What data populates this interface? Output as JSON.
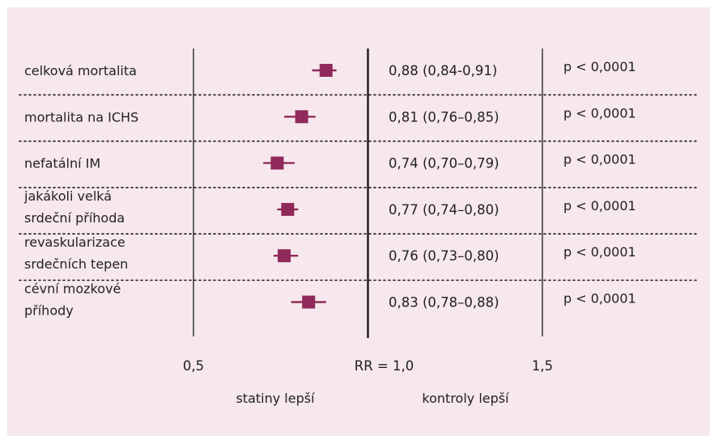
{
  "colors": {
    "background": "#f6e8ed",
    "marker": "#8f2a5a",
    "axis": "#1a1a1a",
    "text": "#222222"
  },
  "chart_data": {
    "type": "forest",
    "x_scale": "linear",
    "x_range": [
      0.5,
      1.5
    ],
    "reference_value": 1.0,
    "ticks": [
      {
        "value": 0.5,
        "label": "0,5"
      },
      {
        "value": 1.0,
        "label": "RR = 1,0"
      },
      {
        "value": 1.5,
        "label": "1,5"
      }
    ],
    "direction_labels": {
      "left": "statiny lepší",
      "right": "kontroly lepší"
    },
    "rows": [
      {
        "label": [
          "celková mortalita"
        ],
        "rr": 0.88,
        "ci": [
          0.84,
          0.91
        ],
        "estimate_text": "0,88 (0,84-0,91)",
        "p_text": "p < 0,0001"
      },
      {
        "label": [
          "mortalita na ICHS"
        ],
        "rr": 0.81,
        "ci": [
          0.76,
          0.85
        ],
        "estimate_text": "0,81 (0,76–0,85)",
        "p_text": "p < 0,0001"
      },
      {
        "label": [
          "nefatální IM"
        ],
        "rr": 0.74,
        "ci": [
          0.7,
          0.79
        ],
        "estimate_text": "0,74 (0,70–0,79)",
        "p_text": "p < 0,0001"
      },
      {
        "label": [
          "jakákoli velká",
          "srdeční příhoda"
        ],
        "rr": 0.77,
        "ci": [
          0.74,
          0.8
        ],
        "estimate_text": "0,77 (0,74–0,80)",
        "p_text": "p < 0,0001"
      },
      {
        "label": [
          "revaskularizace",
          "srdečních tepen"
        ],
        "rr": 0.76,
        "ci": [
          0.73,
          0.8
        ],
        "estimate_text": "0,76 (0,73–0,80)",
        "p_text": "p < 0,0001"
      },
      {
        "label": [
          "cévní mozkové",
          "příhody"
        ],
        "rr": 0.83,
        "ci": [
          0.78,
          0.88
        ],
        "estimate_text": "0,83 (0,78–0,88)",
        "p_text": "p < 0,0001"
      }
    ]
  }
}
